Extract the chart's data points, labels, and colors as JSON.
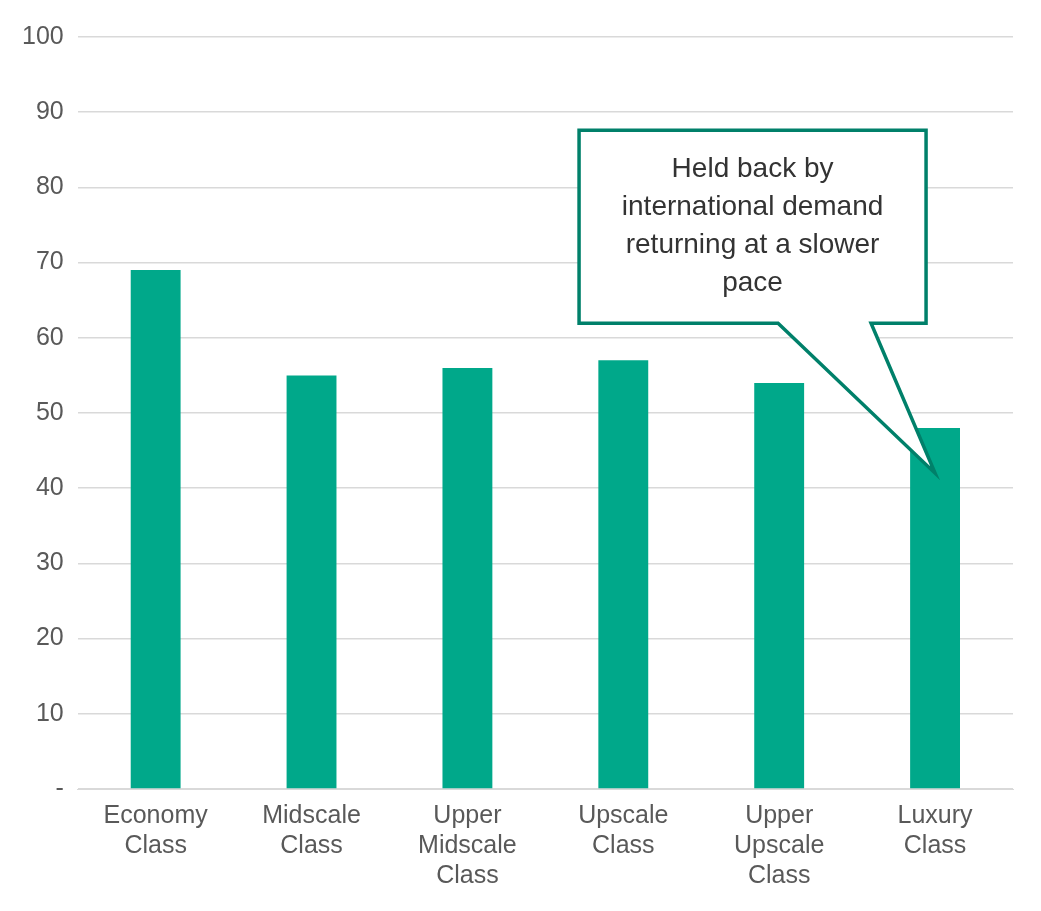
{
  "chart_data": {
    "type": "bar",
    "categories": [
      "Economy Class",
      "Midscale Class",
      "Upper Midscale Class",
      "Upscale Class",
      "Upper Upscale Class",
      "Luxury Class"
    ],
    "values": [
      69,
      55,
      56,
      57,
      54,
      48
    ],
    "color": "#00a88a",
    "ylim": [
      0,
      100
    ],
    "yticks": [
      {
        "value": 0,
        "label": "-"
      },
      10,
      20,
      30,
      40,
      50,
      60,
      70,
      80,
      90,
      100
    ],
    "grid": "y",
    "annotations": [
      "Held back by international demand returning at a slower pace"
    ]
  }
}
